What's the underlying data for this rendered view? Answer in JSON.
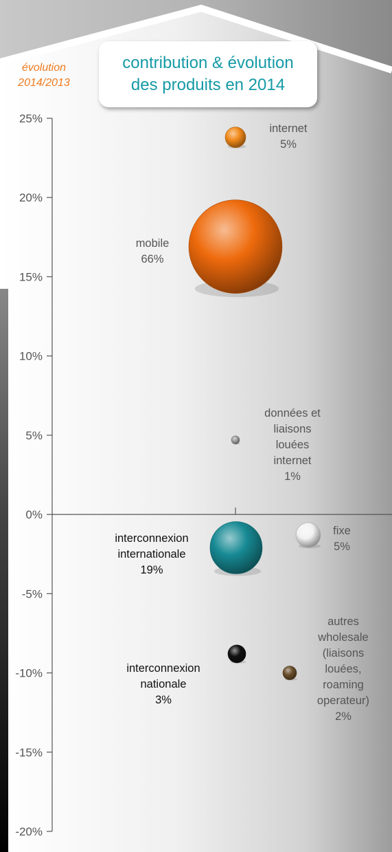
{
  "title": {
    "line1": "contribution & évolution",
    "line2": "des produits en 2014"
  },
  "chart_data": {
    "type": "scatter",
    "ylabel_lines": [
      "évolution",
      "2014/2013"
    ],
    "ylim": [
      -20,
      25
    ],
    "yticks": [
      25,
      20,
      15,
      10,
      5,
      0,
      -5,
      -10,
      -15,
      -20
    ],
    "ytick_labels": [
      "25%",
      "20%",
      "15%",
      "10%",
      "5%",
      "0%",
      "-5%",
      "-10%",
      "-15%",
      "-20%"
    ],
    "points": [
      {
        "name": "internet",
        "label_lines": [
          "internet",
          "5%"
        ],
        "share": 5,
        "y": 23.8,
        "color": "#f28a1c",
        "label_bold": false
      },
      {
        "name": "mobile",
        "label_lines": [
          "mobile",
          "66%"
        ],
        "share": 66,
        "y": 16.9,
        "color": "#ee6a0c",
        "label_bold": false
      },
      {
        "name": "données et liaisons louées internet",
        "label_lines": [
          "données et",
          "liaisons",
          "louées",
          "internet",
          "1%"
        ],
        "share": 1,
        "y": 4.7,
        "color": "#a0a0a0",
        "label_bold": false
      },
      {
        "name": "fixe",
        "label_lines": [
          "fixe",
          "5%"
        ],
        "share": 5,
        "y": -1.3,
        "color": "#f2f2f2",
        "label_bold": false
      },
      {
        "name": "interconnexion internationale",
        "label_lines": [
          "interconnexion",
          "internationale",
          "19%"
        ],
        "share": 19,
        "y": -2.1,
        "color": "#178a94",
        "label_bold": true
      },
      {
        "name": "interconnexion nationale",
        "label_lines": [
          "interconnexion",
          "nationale",
          "3%"
        ],
        "share": 3,
        "y": -8.8,
        "color": "#111111",
        "label_bold": true
      },
      {
        "name": "autres wholesale (liaisons louées, roaming operateur)",
        "label_lines": [
          "autres",
          "wholesale",
          "(liaisons",
          "louées,",
          "roaming",
          "operateur)",
          "2%"
        ],
        "share": 2,
        "y": -10,
        "color": "#6b4f2c",
        "label_bold": false
      }
    ]
  }
}
